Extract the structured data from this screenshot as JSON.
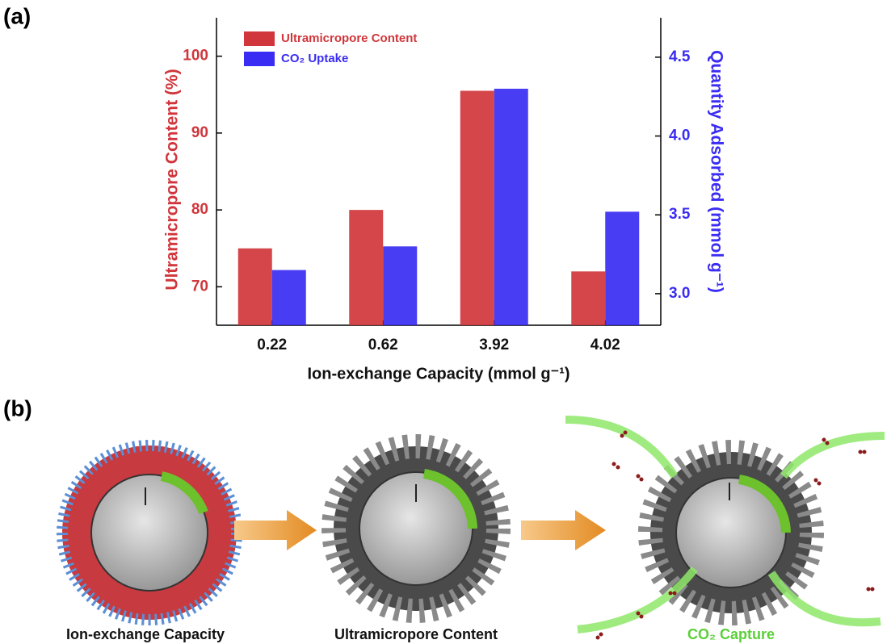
{
  "chart_data": {
    "type": "bar",
    "categories": [
      "0.22",
      "0.62",
      "3.92",
      "4.02"
    ],
    "xlabel": "Ion-exchange Capacity (mmol g⁻¹)",
    "ylabel": "Ultramicropore Content (%)",
    "y2label": "Quantity Adsorbed (mmol g⁻¹)",
    "series": [
      {
        "name": "Ultramicropore Content",
        "color": "#d0363b",
        "values": [
          75,
          80,
          95.5,
          72
        ]
      },
      {
        "name": "CO₂ Uptake",
        "color": "#3a2cf2",
        "axis": "y2",
        "values": [
          3.15,
          3.3,
          4.3,
          3.52
        ]
      }
    ],
    "ylim": [
      65,
      105
    ],
    "yticks": [
      70,
      80,
      90,
      100
    ],
    "y2lim": [
      2.8,
      4.75
    ],
    "y2ticks": [
      {
        "value": 3,
        "label": "3.0"
      },
      3.5,
      {
        "value": 4,
        "label": "4.0"
      },
      4.5
    ],
    "legend": "upper-left"
  },
  "panels": [
    "(a)",
    "(b)"
  ],
  "diagram": {
    "captions": [
      "Ion-exchange Capacity",
      "Ultramicropore Content",
      "CO₂ Capture"
    ]
  }
}
